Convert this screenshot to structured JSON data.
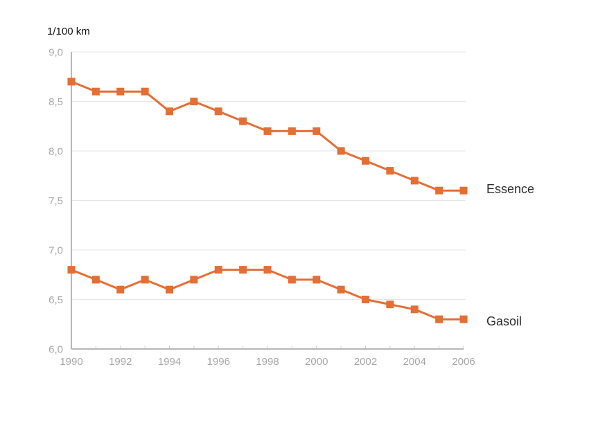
{
  "chart": {
    "unit_label": "1/100 km",
    "accent_color": "#e56e34",
    "grid_color": "#e6e6e6",
    "axis_color": "#b7b7b7",
    "minor_tick_color": "#cfcfcf",
    "tick_label_color": "#a6a6a6",
    "text_color": "#2d2d2d"
  },
  "chart_data": {
    "type": "line",
    "title": "",
    "unit_label": "1/100 km",
    "xlabel": "",
    "ylabel": "1/100 km",
    "x": [
      1990,
      1991,
      1992,
      1993,
      1994,
      1995,
      1996,
      1997,
      1998,
      1999,
      2000,
      2001,
      2002,
      2003,
      2004,
      2005,
      2006
    ],
    "series": [
      {
        "name": "Essence",
        "values": [
          8.7,
          8.6,
          8.6,
          8.6,
          8.4,
          8.5,
          8.4,
          8.3,
          8.2,
          8.2,
          8.2,
          8.0,
          7.9,
          7.8,
          7.7,
          7.6,
          7.6
        ]
      },
      {
        "name": "Gasoil",
        "values": [
          6.8,
          6.7,
          6.6,
          6.7,
          6.6,
          6.7,
          6.8,
          6.8,
          6.8,
          6.7,
          6.7,
          6.6,
          6.5,
          6.45,
          6.4,
          6.3,
          6.3
        ]
      }
    ],
    "ylim": [
      6.0,
      9.0
    ],
    "ytick_step": 0.5,
    "ytick_labels": [
      "6,0",
      "6,5",
      "7,0",
      "7,5",
      "8,0",
      "8,5",
      "9,0"
    ],
    "xtick_labels": [
      "1990",
      "1992",
      "1994",
      "1996",
      "1998",
      "2000",
      "2002",
      "2004",
      "2006"
    ],
    "grid": "horizontal",
    "legend_position": "end-of-line-right",
    "marker": "square",
    "marker_size": 11,
    "line_width": 3
  }
}
